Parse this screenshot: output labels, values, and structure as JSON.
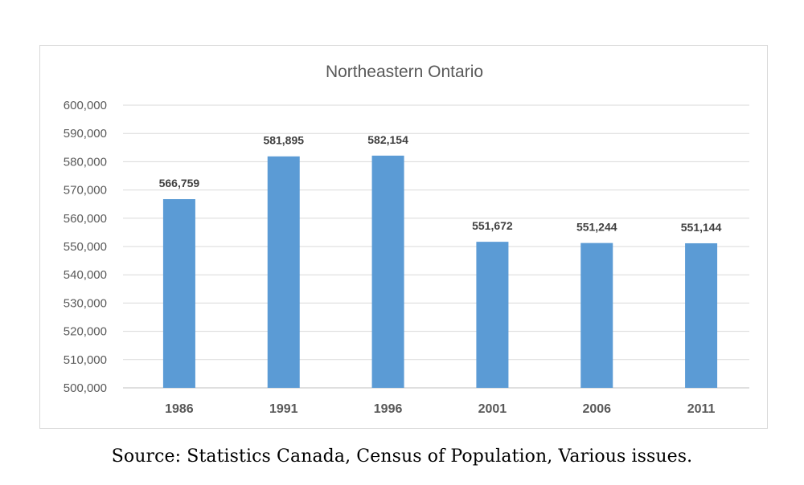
{
  "chart_data": {
    "type": "bar",
    "title": "Northeastern Ontario",
    "xlabel": "",
    "ylabel": "",
    "categories": [
      "1986",
      "1991",
      "1996",
      "2001",
      "2006",
      "2011"
    ],
    "values": [
      566759,
      581895,
      582154,
      551672,
      551244,
      551144
    ],
    "value_labels": [
      "566,759",
      "581,895",
      "582,154",
      "551,672",
      "551,244",
      "551,144"
    ],
    "ylim": [
      500000,
      600000
    ],
    "y_ticks": [
      500000,
      510000,
      520000,
      530000,
      540000,
      550000,
      560000,
      570000,
      580000,
      590000,
      600000
    ],
    "y_tick_labels": [
      "500,000",
      "510,000",
      "520,000",
      "530,000",
      "540,000",
      "550,000",
      "560,000",
      "570,000",
      "580,000",
      "590,000",
      "600,000"
    ],
    "grid": true,
    "legend": "none",
    "bar_color": "#5b9bd5"
  },
  "caption": "Source: Statistics Canada, Census of Population, Various issues."
}
